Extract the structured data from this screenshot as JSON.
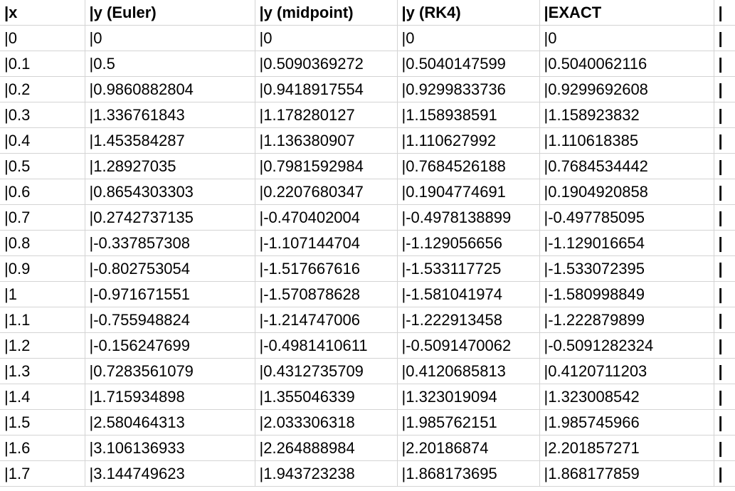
{
  "table": {
    "headers": [
      "|x",
      "|y (Euler)",
      "|y (midpoint)",
      "|y (RK4)",
      "|EXACT",
      "|"
    ],
    "rows": [
      [
        "|0",
        "|0",
        "|0",
        "|0",
        "|0",
        "|"
      ],
      [
        "|0.1",
        "|0.5",
        "|0.5090369272",
        "|0.5040147599",
        "|0.5040062116",
        "|"
      ],
      [
        "|0.2",
        "|0.9860882804",
        "|0.9418917554",
        "|0.9299833736",
        "|0.9299692608",
        "|"
      ],
      [
        "|0.3",
        "|1.336761843",
        "|1.178280127",
        "|1.158938591",
        "|1.158923832",
        "|"
      ],
      [
        "|0.4",
        "|1.453584287",
        "|1.136380907",
        "|1.110627992",
        "|1.110618385",
        "|"
      ],
      [
        "|0.5",
        "|1.28927035",
        "|0.7981592984",
        "|0.7684526188",
        "|0.7684534442",
        "|"
      ],
      [
        "|0.6",
        "|0.8654303303",
        "|0.2207680347",
        "|0.1904774691",
        "|0.1904920858",
        "|"
      ],
      [
        "|0.7",
        "|0.2742737135",
        "|-0.470402004",
        "|-0.4978138899",
        "|-0.497785095",
        "|"
      ],
      [
        "|0.8",
        "|-0.337857308",
        "|-1.107144704",
        "|-1.129056656",
        "|-1.129016654",
        "|"
      ],
      [
        "|0.9",
        "|-0.802753054",
        "|-1.517667616",
        "|-1.533117725",
        "|-1.533072395",
        "|"
      ],
      [
        "|1",
        "|-0.971671551",
        "|-1.570878628",
        "|-1.581041974",
        "|-1.580998849",
        "|"
      ],
      [
        "|1.1",
        "|-0.755948824",
        "|-1.214747006",
        "|-1.222913458",
        "|-1.222879899",
        "|"
      ],
      [
        "|1.2",
        "|-0.156247699",
        "|-0.4981410611",
        "|-0.5091470062",
        "|-0.5091282324",
        "|"
      ],
      [
        "|1.3",
        "|0.7283561079",
        "|0.4312735709",
        "|0.4120685813",
        "|0.4120711203",
        "|"
      ],
      [
        "|1.4",
        "|1.715934898",
        "|1.355046339",
        "|1.323019094",
        "|1.323008542",
        "|"
      ],
      [
        "|1.5",
        "|2.580464313",
        "|2.033306318",
        "|1.985762151",
        "|1.985745966",
        "|"
      ],
      [
        "|1.6",
        "|3.106136933",
        "|2.264888984",
        "|2.20186874",
        "|2.201857271",
        "|"
      ],
      [
        "|1.7",
        "|3.144749623",
        "|1.943723238",
        "|1.868173695",
        "|1.868177859",
        "|"
      ]
    ]
  }
}
